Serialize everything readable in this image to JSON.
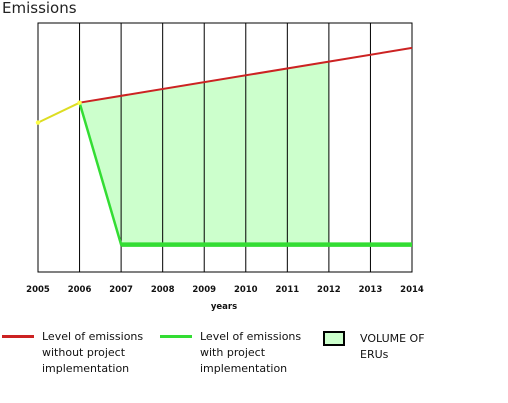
{
  "chart_data": {
    "type": "line",
    "ylabel": "Emissions",
    "xlabel": "years",
    "categories": [
      "2005",
      "2006",
      "2007",
      "2008",
      "2009",
      "2010",
      "2011",
      "2012",
      "2013",
      "2014"
    ],
    "xlim": [
      2005,
      2014
    ],
    "grid": true,
    "series": [
      {
        "name": "Level of emissions without project implementation",
        "color": "#cc2222",
        "x": [
          2006,
          2014
        ],
        "y": [
          0.68,
          0.9
        ]
      },
      {
        "name": "Level of emissions with project implementation",
        "color": "#33dd33",
        "x": [
          2005,
          2006,
          2007,
          2014
        ],
        "y": [
          0.6,
          0.68,
          0.11,
          0.11
        ]
      }
    ],
    "baseline": {
      "color": "#dddd22",
      "x": [
        2005,
        2006
      ],
      "y": [
        0.6,
        0.68
      ]
    },
    "area": {
      "name": "VOLUME OF ERUs",
      "color": "#ccffcc",
      "x_from": 2006,
      "x_to": 2012
    },
    "legend_position": "bottom"
  },
  "legend": {
    "without_line1": "Level of emissions",
    "without_line2": "without project",
    "without_line3": "implementation",
    "with_line1": "Level of emissions",
    "with_line2": "with project",
    "with_line3": "implementation",
    "erus_line1": "VOLUME OF",
    "erus_line2": "ERUs"
  }
}
